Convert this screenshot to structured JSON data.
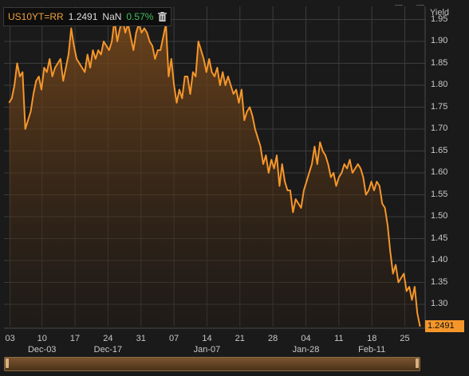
{
  "legend": {
    "ticker": "US10YT=RR",
    "last": "1.2491",
    "nan": "NaN",
    "change": "0.57%",
    "icon": "trash-icon"
  },
  "axis_title": "Yield",
  "last_badge": "1.2491",
  "colors": {
    "line": "#f5962a",
    "background": "#1a1a1a",
    "grid": "#3c3c3c",
    "change_up": "#3cc05a"
  },
  "chart_data": {
    "type": "area",
    "series": [
      {
        "values": [
          1.76,
          1.77,
          1.8,
          1.85,
          1.82,
          1.83,
          1.7,
          1.72,
          1.74,
          1.78,
          1.81,
          1.82,
          1.79,
          1.84,
          1.83,
          1.86,
          1.82,
          1.84,
          1.85,
          1.86,
          1.81,
          1.84,
          1.87,
          1.93,
          1.89,
          1.86,
          1.85,
          1.84,
          1.83,
          1.87,
          1.84,
          1.88,
          1.86,
          1.88,
          1.87,
          1.9,
          1.89,
          1.88,
          1.9,
          1.95,
          1.9,
          1.93,
          1.95,
          1.92,
          1.94,
          1.91,
          1.88,
          1.92,
          1.94,
          1.92,
          1.93,
          1.92,
          1.9,
          1.89,
          1.86,
          1.88,
          1.88,
          1.91,
          1.94,
          1.82,
          1.86,
          1.8,
          1.76,
          1.79,
          1.77,
          1.82,
          1.82,
          1.78,
          1.83,
          1.82,
          1.9,
          1.88,
          1.86,
          1.83,
          1.86,
          1.83,
          1.82,
          1.84,
          1.8,
          1.83,
          1.8,
          1.82,
          1.8,
          1.78,
          1.79,
          1.76,
          1.79,
          1.72,
          1.74,
          1.75,
          1.73,
          1.7,
          1.68,
          1.66,
          1.62,
          1.64,
          1.6,
          1.63,
          1.61,
          1.64,
          1.57,
          1.62,
          1.58,
          1.56,
          1.56,
          1.51,
          1.54,
          1.53,
          1.52,
          1.56,
          1.58,
          1.6,
          1.62,
          1.66,
          1.62,
          1.67,
          1.65,
          1.64,
          1.62,
          1.59,
          1.6,
          1.57,
          1.59,
          1.6,
          1.62,
          1.61,
          1.63,
          1.6,
          1.61,
          1.62,
          1.61,
          1.59,
          1.55,
          1.56,
          1.58,
          1.56,
          1.58,
          1.57,
          1.53,
          1.52,
          1.48,
          1.42,
          1.37,
          1.39,
          1.35,
          1.36,
          1.37,
          1.33,
          1.34,
          1.31,
          1.34,
          1.28,
          1.2491
        ]
      }
    ],
    "x_ticks": [
      "03",
      "10",
      "17",
      "24",
      "31",
      "07",
      "14",
      "21",
      "28",
      "04",
      "11",
      "18",
      "25"
    ],
    "x_tick_positions": [
      0.2,
      6.5,
      13,
      19.5,
      26,
      32.5,
      39,
      45.5,
      52,
      58.5,
      65,
      71.5,
      78
    ],
    "month_labels": [
      "Dec-03",
      "Dec-17",
      "Jan-07",
      "Jan-28",
      "Feb-11"
    ],
    "month_label_positions": [
      6.5,
      19.5,
      39,
      58.5,
      71.5
    ],
    "y_ticks": [
      "1.30",
      "1.35",
      "1.40",
      "1.45",
      "1.50",
      "1.55",
      "1.60",
      "1.65",
      "1.70",
      "1.75",
      "1.80",
      "1.85",
      "1.90",
      "1.95"
    ],
    "ylim": [
      1.2491,
      1.98
    ],
    "xlim": [
      -1,
      82
    ],
    "ylabel": "Yield",
    "grid": true,
    "legend_position": "top-left"
  }
}
